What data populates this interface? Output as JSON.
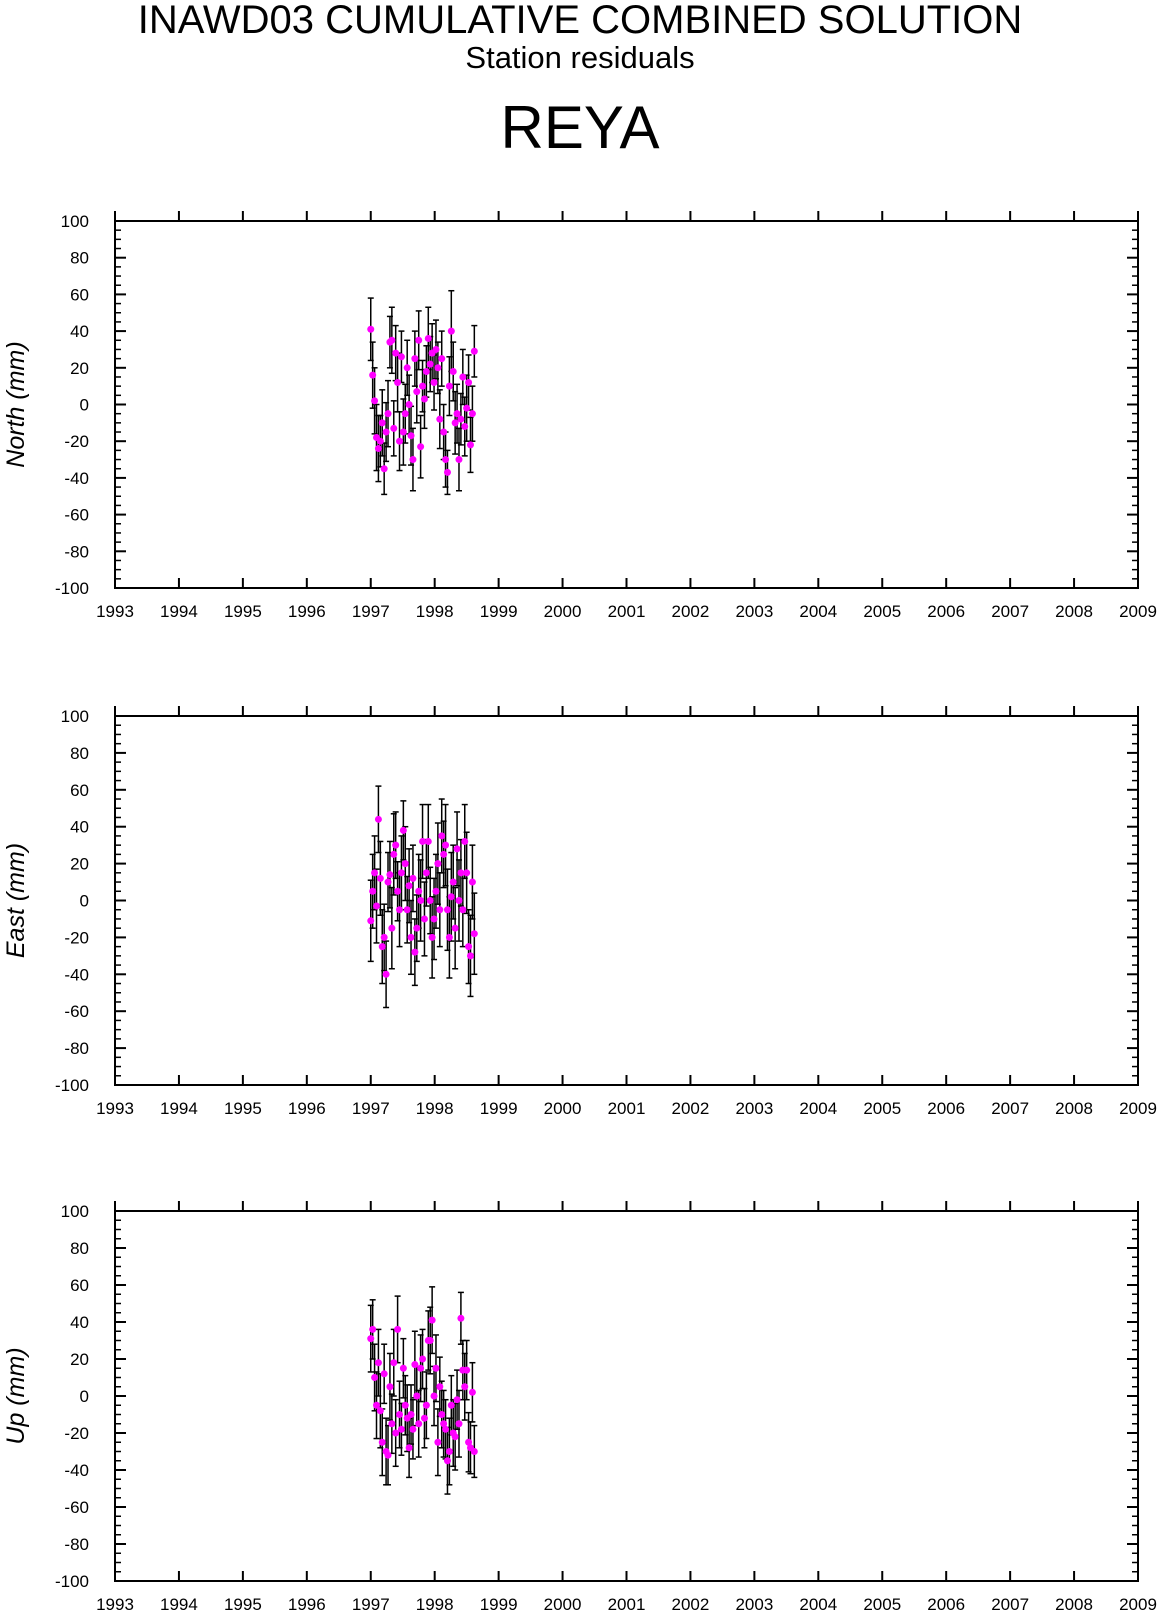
{
  "header": {
    "title": "INAWD03 CUMULATIVE COMBINED SOLUTION",
    "subtitle": "Station residuals",
    "station": "REYA"
  },
  "colors": {
    "point": "#ff00ff",
    "errorbar": "#000000",
    "axis": "#000000"
  },
  "chart_data": [
    {
      "type": "scatter",
      "ylabel": "North (mm)",
      "xlim": [
        1993,
        2009
      ],
      "ylim": [
        -100,
        100
      ],
      "x_ticks": [
        "1993",
        "1994",
        "1995",
        "1996",
        "1997",
        "1998",
        "1999",
        "2000",
        "2001",
        "2002",
        "2003",
        "2004",
        "2005",
        "2006",
        "2007",
        "2008",
        "2009"
      ],
      "y_ticks": [
        "100",
        "80",
        "60",
        "40",
        "20",
        "0",
        "-20",
        "-40",
        "-60",
        "-80",
        "-100"
      ],
      "error_bars": true,
      "series": [
        {
          "x": [
            1997.0,
            1997.03,
            1997.06,
            1997.09,
            1997.12,
            1997.15,
            1997.18,
            1997.21,
            1997.24,
            1997.27,
            1997.3,
            1997.33,
            1997.36,
            1997.39,
            1997.42,
            1997.45,
            1997.48,
            1997.51,
            1997.54,
            1997.57,
            1997.6,
            1997.63,
            1997.66,
            1997.69,
            1997.72,
            1997.75,
            1997.78,
            1997.81,
            1997.84,
            1997.87,
            1997.9,
            1997.93,
            1997.96,
            1997.99,
            1998.02,
            1998.05,
            1998.08,
            1998.11,
            1998.14,
            1998.17,
            1998.2,
            1998.23,
            1998.26,
            1998.29,
            1998.32,
            1998.35,
            1998.38,
            1998.41,
            1998.44,
            1998.47,
            1998.5,
            1998.53,
            1998.56,
            1998.59,
            1998.62
          ],
          "y": [
            41,
            16,
            2,
            -18,
            -24,
            -20,
            -10,
            -35,
            -15,
            -5,
            34,
            35,
            -13,
            28,
            12,
            -20,
            26,
            -15,
            -5,
            20,
            0,
            -17,
            -30,
            25,
            7,
            35,
            -23,
            10,
            3,
            18,
            36,
            22,
            28,
            12,
            30,
            20,
            -8,
            25,
            -15,
            -30,
            -37,
            10,
            40,
            18,
            -10,
            -5,
            -30,
            -8,
            15,
            -12,
            -2,
            12,
            -22,
            -5,
            29
          ],
          "err": [
            17,
            18,
            18,
            18,
            18,
            14,
            18,
            14,
            16,
            18,
            14,
            18,
            15,
            15,
            16,
            16,
            14,
            18,
            16,
            15,
            16,
            16,
            17,
            15,
            17,
            16,
            17,
            14,
            16,
            14,
            17,
            15,
            16,
            15,
            16,
            14,
            16,
            15,
            15,
            15,
            12,
            16,
            22,
            16,
            17,
            16,
            17,
            14,
            15,
            16,
            18,
            15,
            15,
            15,
            14
          ]
        }
      ]
    },
    {
      "type": "scatter",
      "ylabel": "East (mm)",
      "xlim": [
        1993,
        2009
      ],
      "ylim": [
        -100,
        100
      ],
      "x_ticks": [
        "1993",
        "1994",
        "1995",
        "1996",
        "1997",
        "1998",
        "1999",
        "2000",
        "2001",
        "2002",
        "2003",
        "2004",
        "2005",
        "2006",
        "2007",
        "2008",
        "2009"
      ],
      "y_ticks": [
        "100",
        "80",
        "60",
        "40",
        "20",
        "0",
        "-20",
        "-40",
        "-60",
        "-80",
        "-100"
      ],
      "error_bars": true,
      "series": [
        {
          "x": [
            1997.0,
            1997.03,
            1997.06,
            1997.09,
            1997.12,
            1997.15,
            1997.18,
            1997.21,
            1997.24,
            1997.27,
            1997.3,
            1997.33,
            1997.36,
            1997.39,
            1997.42,
            1997.45,
            1997.48,
            1997.51,
            1997.54,
            1997.57,
            1997.6,
            1997.63,
            1997.66,
            1997.69,
            1997.72,
            1997.75,
            1997.78,
            1997.81,
            1997.84,
            1997.87,
            1997.9,
            1997.93,
            1997.96,
            1997.99,
            1998.02,
            1998.05,
            1998.08,
            1998.11,
            1998.14,
            1998.17,
            1998.2,
            1998.23,
            1998.26,
            1998.29,
            1998.32,
            1998.35,
            1998.38,
            1998.41,
            1998.44,
            1998.47,
            1998.5,
            1998.53,
            1998.56,
            1998.59,
            1998.62
          ],
          "y": [
            -11,
            5,
            15,
            -3,
            44,
            12,
            -25,
            -20,
            -40,
            10,
            14,
            -15,
            25,
            30,
            5,
            -5,
            15,
            38,
            20,
            -5,
            8,
            -20,
            12,
            -28,
            -15,
            5,
            0,
            32,
            -10,
            15,
            32,
            0,
            -20,
            -10,
            5,
            20,
            -5,
            35,
            25,
            30,
            -5,
            -20,
            2,
            10,
            -15,
            28,
            0,
            15,
            -5,
            32,
            15,
            -25,
            -30,
            10,
            -18
          ],
          "err": [
            22,
            20,
            20,
            20,
            18,
            20,
            20,
            18,
            18,
            16,
            18,
            22,
            22,
            18,
            16,
            20,
            20,
            16,
            20,
            18,
            20,
            20,
            18,
            18,
            18,
            20,
            22,
            20,
            20,
            18,
            20,
            18,
            22,
            22,
            20,
            22,
            20,
            20,
            18,
            22,
            22,
            22,
            24,
            20,
            22,
            20,
            22,
            18,
            20,
            20,
            22,
            20,
            22,
            20,
            22
          ]
        }
      ]
    },
    {
      "type": "scatter",
      "ylabel": "Up (mm)",
      "xlim": [
        1993,
        2009
      ],
      "ylim": [
        -100,
        100
      ],
      "x_ticks": [
        "1993",
        "1994",
        "1995",
        "1996",
        "1997",
        "1998",
        "1999",
        "2000",
        "2001",
        "2002",
        "2003",
        "2004",
        "2005",
        "2006",
        "2007",
        "2008",
        "2009"
      ],
      "y_ticks": [
        "100",
        "80",
        "60",
        "40",
        "20",
        "0",
        "-20",
        "-40",
        "-60",
        "-80",
        "-100"
      ],
      "error_bars": true,
      "series": [
        {
          "x": [
            1997.0,
            1997.03,
            1997.06,
            1997.09,
            1997.12,
            1997.15,
            1997.18,
            1997.21,
            1997.24,
            1997.27,
            1997.3,
            1997.33,
            1997.36,
            1997.39,
            1997.42,
            1997.45,
            1997.48,
            1997.51,
            1997.54,
            1997.57,
            1997.6,
            1997.63,
            1997.66,
            1997.69,
            1997.72,
            1997.75,
            1997.78,
            1997.81,
            1997.84,
            1997.87,
            1997.9,
            1997.93,
            1997.96,
            1997.99,
            1998.02,
            1998.05,
            1998.08,
            1998.11,
            1998.14,
            1998.17,
            1998.2,
            1998.23,
            1998.26,
            1998.29,
            1998.32,
            1998.35,
            1998.38,
            1998.41,
            1998.44,
            1998.47,
            1998.5,
            1998.53,
            1998.56,
            1998.59,
            1998.62
          ],
          "y": [
            31,
            36,
            10,
            -5,
            18,
            -8,
            -25,
            12,
            -30,
            -32,
            5,
            -15,
            18,
            -20,
            36,
            -10,
            -18,
            15,
            -5,
            -12,
            -28,
            -10,
            -18,
            17,
            0,
            -15,
            15,
            20,
            -12,
            -5,
            30,
            30,
            41,
            0,
            15,
            -25,
            5,
            -10,
            -15,
            -18,
            -35,
            -30,
            -5,
            -20,
            -22,
            -2,
            -15,
            42,
            14,
            5,
            14,
            -25,
            -28,
            2,
            -30
          ],
          "err": [
            18,
            16,
            18,
            18,
            18,
            20,
            18,
            16,
            18,
            16,
            18,
            16,
            18,
            18,
            18,
            18,
            14,
            16,
            16,
            18,
            16,
            16,
            16,
            18,
            16,
            18,
            18,
            16,
            16,
            18,
            16,
            18,
            18,
            16,
            18,
            18,
            16,
            18,
            18,
            16,
            18,
            18,
            16,
            18,
            18,
            16,
            18,
            14,
            16,
            18,
            16,
            16,
            14,
            16,
            14
          ]
        }
      ]
    }
  ]
}
